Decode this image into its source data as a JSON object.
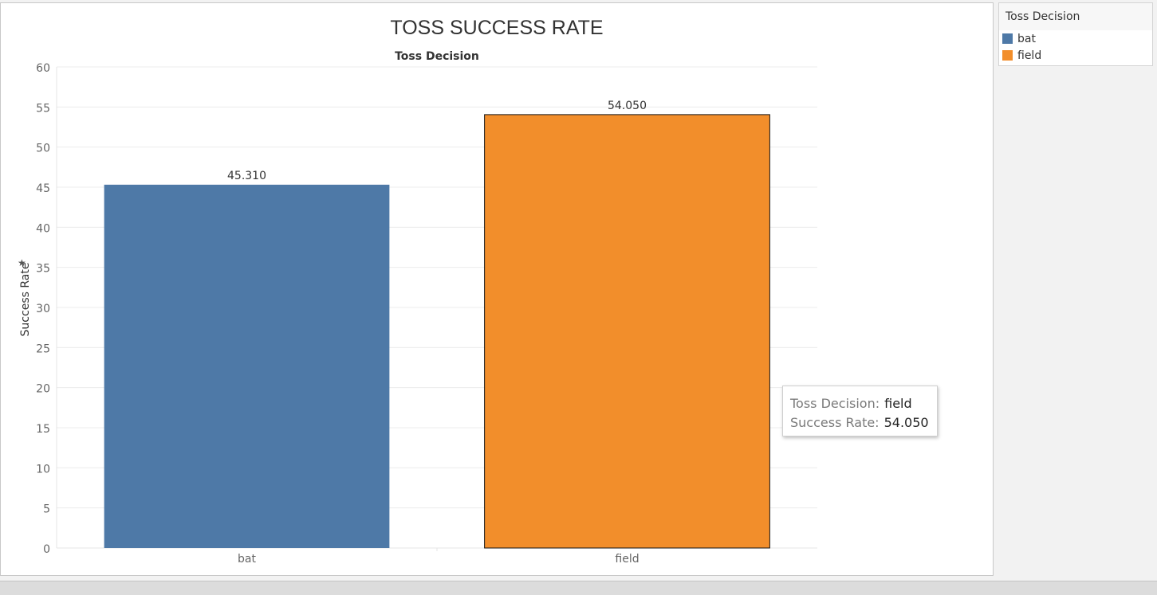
{
  "chart_data": {
    "type": "bar",
    "title": "TOSS SUCCESS RATE",
    "header": "Toss Decision",
    "xlabel": "",
    "ylabel": "Success Rate",
    "categories": [
      "bat",
      "field"
    ],
    "values": [
      45.31,
      54.05
    ],
    "value_labels": [
      "45.310",
      "54.050"
    ],
    "ylim": [
      0,
      60
    ],
    "yticks": [
      0,
      5,
      10,
      15,
      20,
      25,
      30,
      35,
      40,
      45,
      50,
      55,
      60
    ],
    "colors": [
      "#4e79a7",
      "#f28e2b"
    ],
    "grid": "horizontal",
    "legend_placement": "right"
  },
  "legend": {
    "title": "Toss Decision",
    "items": [
      {
        "label": "bat",
        "color": "#4e79a7"
      },
      {
        "label": "field",
        "color": "#f28e2b"
      }
    ]
  },
  "tooltip": {
    "rows": [
      {
        "key": "Toss Decision:",
        "value": "field"
      },
      {
        "key": "Success Rate:",
        "value": "54.050"
      }
    ]
  },
  "icons": {
    "axis_pin": "pin-icon"
  }
}
